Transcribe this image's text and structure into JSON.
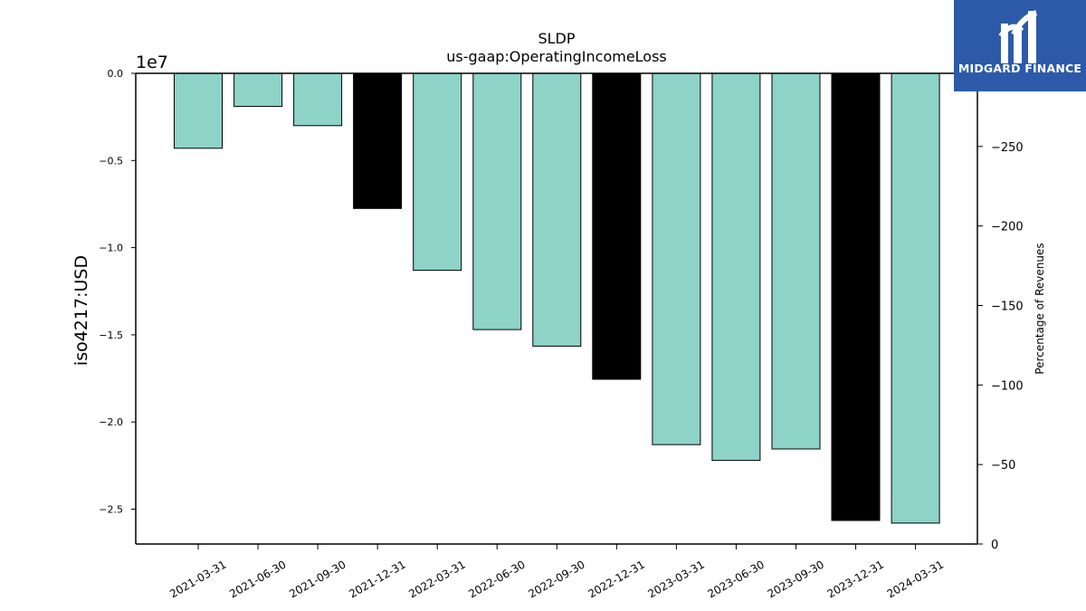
{
  "logo": {
    "text": "MIDGARD FINANCE",
    "background": "#2c5aa8"
  },
  "chart_data": {
    "type": "bar",
    "title": "SLDP",
    "subtitle": "us-gaap:OperatingIncomeLoss",
    "ylabel": "iso4217:USD",
    "y_offset_label": "1e7",
    "y2label": "Percentage of Revenues",
    "ylim": [
      -2.7,
      0.0
    ],
    "yticks": [
      0.0,
      -0.5,
      -1.0,
      -1.5,
      -2.0,
      -2.5
    ],
    "ytick_labels": [
      "0.0",
      "−0.5",
      "−1.0",
      "−1.5",
      "−2.0",
      "−2.5"
    ],
    "y2lim": [
      0,
      296
    ],
    "y2ticks": [
      0,
      50,
      100,
      150,
      200,
      250
    ],
    "y2tick_labels": [
      "0",
      "−50",
      "−100",
      "−150",
      "−200",
      "−250"
    ],
    "categories": [
      "2021-03-31",
      "2021-06-30",
      "2021-09-30",
      "2021-12-31",
      "2022-03-31",
      "2022-06-30",
      "2022-09-30",
      "2022-12-31",
      "2023-03-31",
      "2023-06-30",
      "2023-09-30",
      "2023-12-31",
      "2024-03-31"
    ],
    "values": [
      -0.43,
      -0.19,
      -0.3,
      -0.775,
      -1.13,
      -1.47,
      -1.565,
      -1.755,
      -2.13,
      -2.22,
      -2.155,
      -2.565,
      -2.58
    ],
    "bar_colors": [
      "#8dd3c7",
      "#8dd3c7",
      "#8dd3c7",
      "#000000",
      "#8dd3c7",
      "#8dd3c7",
      "#8dd3c7",
      "#000000",
      "#8dd3c7",
      "#8dd3c7",
      "#8dd3c7",
      "#000000",
      "#8dd3c7"
    ],
    "colors": {
      "quarter": "#8dd3c7",
      "year_end": "#000000"
    },
    "grid": false
  }
}
